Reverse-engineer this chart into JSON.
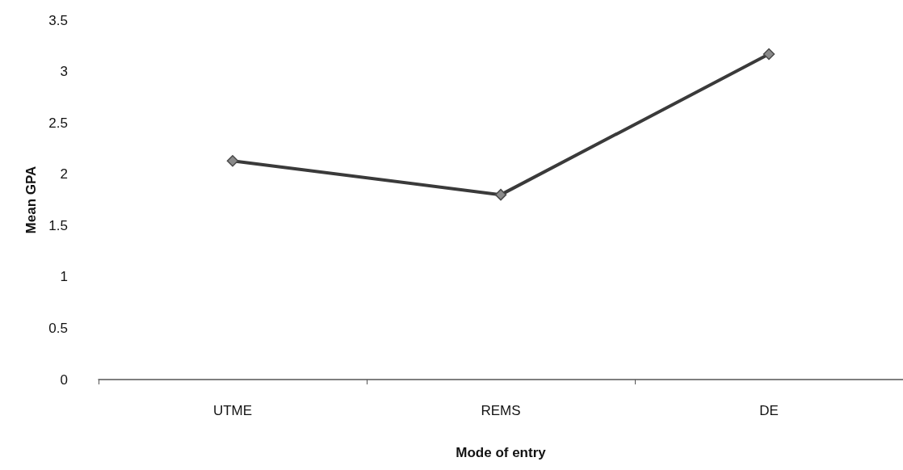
{
  "chart_data": {
    "type": "line",
    "xlabel": "Mode of entry",
    "ylabel": "Mean GPA",
    "categories": [
      "UTME",
      "REMS",
      "DE"
    ],
    "series": [
      {
        "color": "#3a3a3a",
        "values": [
          2.13,
          1.8,
          3.17
        ]
      }
    ],
    "ylim": [
      0,
      3.5
    ],
    "yticks": [
      0,
      0.5,
      1,
      1.5,
      2,
      2.5,
      3,
      3.5
    ],
    "grid": false,
    "marker": "diamond",
    "line_style": "solid"
  }
}
